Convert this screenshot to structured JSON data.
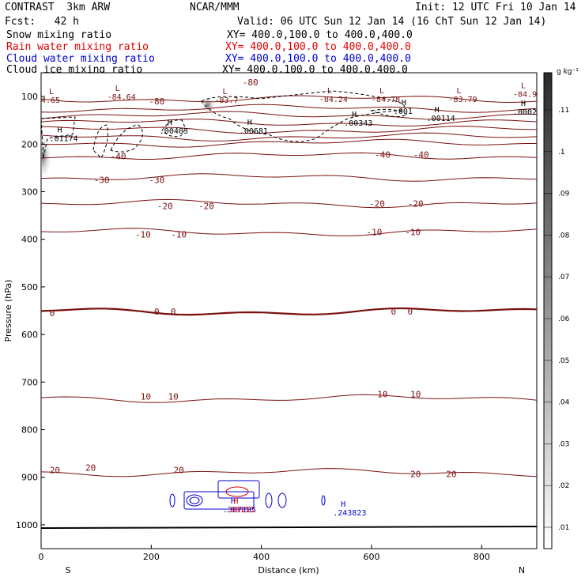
{
  "header": {
    "model": "CONTRAST  3km ARW",
    "org": "NCAR/MMM",
    "init": "Init: 12 UTC Fri 10 Jan 14",
    "fcst": "Fcst:   42 h",
    "valid": "Valid: 06 UTC Sun 12 Jan 14 (16 ChT Sun 12 Jan 14)",
    "fields": [
      {
        "name": "Snow mixing ratio",
        "xy": "XY= 400.0,100.0 to 400.0,400.0",
        "color": "#000000"
      },
      {
        "name": "Rain water mixing ratio",
        "xy": "XY= 400.0,100.0 to 400.0,400.0",
        "color": "#e00000"
      },
      {
        "name": "Cloud water mixing ratio",
        "xy": "XY= 400.0,100.0 to 400.0,400.0",
        "color": "#0000d0"
      },
      {
        "name": "Cloud ice mixing ratio",
        "xy": "XY= 400.0,100.0 to 400.0,400.0",
        "color": "#000000"
      }
    ]
  },
  "chart_data": {
    "type": "heatmap",
    "xlabel": "Distance (km)",
    "ylabel": "Pressure (hPa)",
    "xlim": [
      0,
      900
    ],
    "ylim": [
      1050,
      50
    ],
    "x_ticks": [
      0,
      200,
      400,
      600,
      800
    ],
    "y_ticks": [
      100,
      200,
      300,
      400,
      500,
      600,
      700,
      800,
      900,
      1000
    ],
    "x_end_labels": {
      "left": "S",
      "right": "N"
    },
    "colorbar": {
      "unit": "g kg⁻¹",
      "labels": [
        ".01",
        ".02",
        ".03",
        ".04",
        ".05",
        ".06",
        ".07",
        ".08",
        ".09",
        ".1",
        ".11"
      ],
      "color_low": "#ffffff",
      "color_high": "#2a2a2a"
    },
    "temperature_contours": [
      {
        "label": "-80",
        "p": 105
      },
      {
        "label": "",
        "p": 125
      },
      {
        "label": "",
        "p": 140
      },
      {
        "label": "",
        "p": 155
      },
      {
        "label": "",
        "p": 170
      },
      {
        "label": "",
        "p": 185
      },
      {
        "label": "",
        "p": 198
      },
      {
        "label": "-40",
        "p": 225
      },
      {
        "label": "-30",
        "p": 270
      },
      {
        "label": "-20",
        "p": 325
      },
      {
        "label": "-10",
        "p": 385
      },
      {
        "label": "0",
        "p": 552
      },
      {
        "label": "10",
        "p": 735
      },
      {
        "label": "20",
        "p": 890
      }
    ],
    "contour_label_positions": [
      {
        "text": "-80",
        "x": 380,
        "p": 70
      },
      {
        "text": "-80",
        "x": 210,
        "p": 110
      },
      {
        "text": "-40",
        "x": 140,
        "p": 225
      },
      {
        "text": "-40",
        "x": 620,
        "p": 222
      },
      {
        "text": "-40",
        "x": 690,
        "p": 222
      },
      {
        "text": "-30",
        "x": 110,
        "p": 275
      },
      {
        "text": "-30",
        "x": 210,
        "p": 275
      },
      {
        "text": "-20",
        "x": 225,
        "p": 330
      },
      {
        "text": "-20",
        "x": 300,
        "p": 330
      },
      {
        "text": "-20",
        "x": 610,
        "p": 325
      },
      {
        "text": "-20",
        "x": 680,
        "p": 325
      },
      {
        "text": "-10",
        "x": 185,
        "p": 390
      },
      {
        "text": "-10",
        "x": 250,
        "p": 390
      },
      {
        "text": "-10",
        "x": 605,
        "p": 385
      },
      {
        "text": "-10",
        "x": 675,
        "p": 385
      },
      {
        "text": "0",
        "x": 20,
        "p": 555
      },
      {
        "text": "0",
        "x": 210,
        "p": 552
      },
      {
        "text": "0",
        "x": 240,
        "p": 552
      },
      {
        "text": "0",
        "x": 640,
        "p": 552
      },
      {
        "text": "0",
        "x": 670,
        "p": 552
      },
      {
        "text": "10",
        "x": 190,
        "p": 730
      },
      {
        "text": "10",
        "x": 240,
        "p": 730
      },
      {
        "text": "10",
        "x": 620,
        "p": 725
      },
      {
        "text": "10",
        "x": 680,
        "p": 725
      },
      {
        "text": "20",
        "x": 25,
        "p": 885
      },
      {
        "text": "20",
        "x": 90,
        "p": 880
      },
      {
        "text": "20",
        "x": 250,
        "p": 885
      },
      {
        "text": "20",
        "x": 680,
        "p": 893
      },
      {
        "text": "20",
        "x": 745,
        "p": 893
      }
    ],
    "markers": [
      {
        "type": "L",
        "value": "4.65",
        "x": 0,
        "p": 95,
        "color": "#7a1010"
      },
      {
        "type": "L",
        "value": "-84.64",
        "x": 120,
        "p": 88,
        "color": "#7a1010"
      },
      {
        "type": "L",
        "value": "-83.7",
        "x": 315,
        "p": 95,
        "color": "#7a1010"
      },
      {
        "type": "L",
        "value": "-84.24",
        "x": 505,
        "p": 93,
        "color": "#7a1010"
      },
      {
        "type": "L",
        "value": "-84.78",
        "x": 600,
        "p": 93,
        "color": "#7a1010"
      },
      {
        "type": "L",
        "value": "-83.79",
        "x": 740,
        "p": 93,
        "color": "#7a1010"
      },
      {
        "type": "L",
        "value": "-84.9",
        "x": 860,
        "p": 82,
        "color": "#7a1010"
      },
      {
        "type": "H",
        "value": ".0002",
        "x": 860,
        "p": 120,
        "color": "#000000"
      },
      {
        "type": "H",
        "value": ".001",
        "x": 640,
        "p": 118,
        "color": "#000000"
      },
      {
        "type": "H",
        "value": ".00114",
        "x": 700,
        "p": 133,
        "color": "#000000"
      },
      {
        "type": "H",
        "value": ".00343",
        "x": 550,
        "p": 143,
        "color": "#000000"
      },
      {
        "type": "H",
        "value": ".00681",
        "x": 360,
        "p": 160,
        "color": "#000000"
      },
      {
        "type": "H",
        "value": ".00403",
        "x": 215,
        "p": 160,
        "color": "#000000"
      },
      {
        "type": "H",
        "value": ".01174",
        "x": 15,
        "p": 175,
        "color": "#000000"
      },
      {
        "type": "H",
        "value": ".243823",
        "x": 530,
        "p": 962,
        "color": "#0000d0"
      },
      {
        "type": "H",
        "value": ".387185",
        "x": 330,
        "p": 955,
        "color": "#0000d0"
      },
      {
        "type": "H",
        "value": ".00153",
        "x": 335,
        "p": 955,
        "color": "#e00000"
      }
    ]
  }
}
